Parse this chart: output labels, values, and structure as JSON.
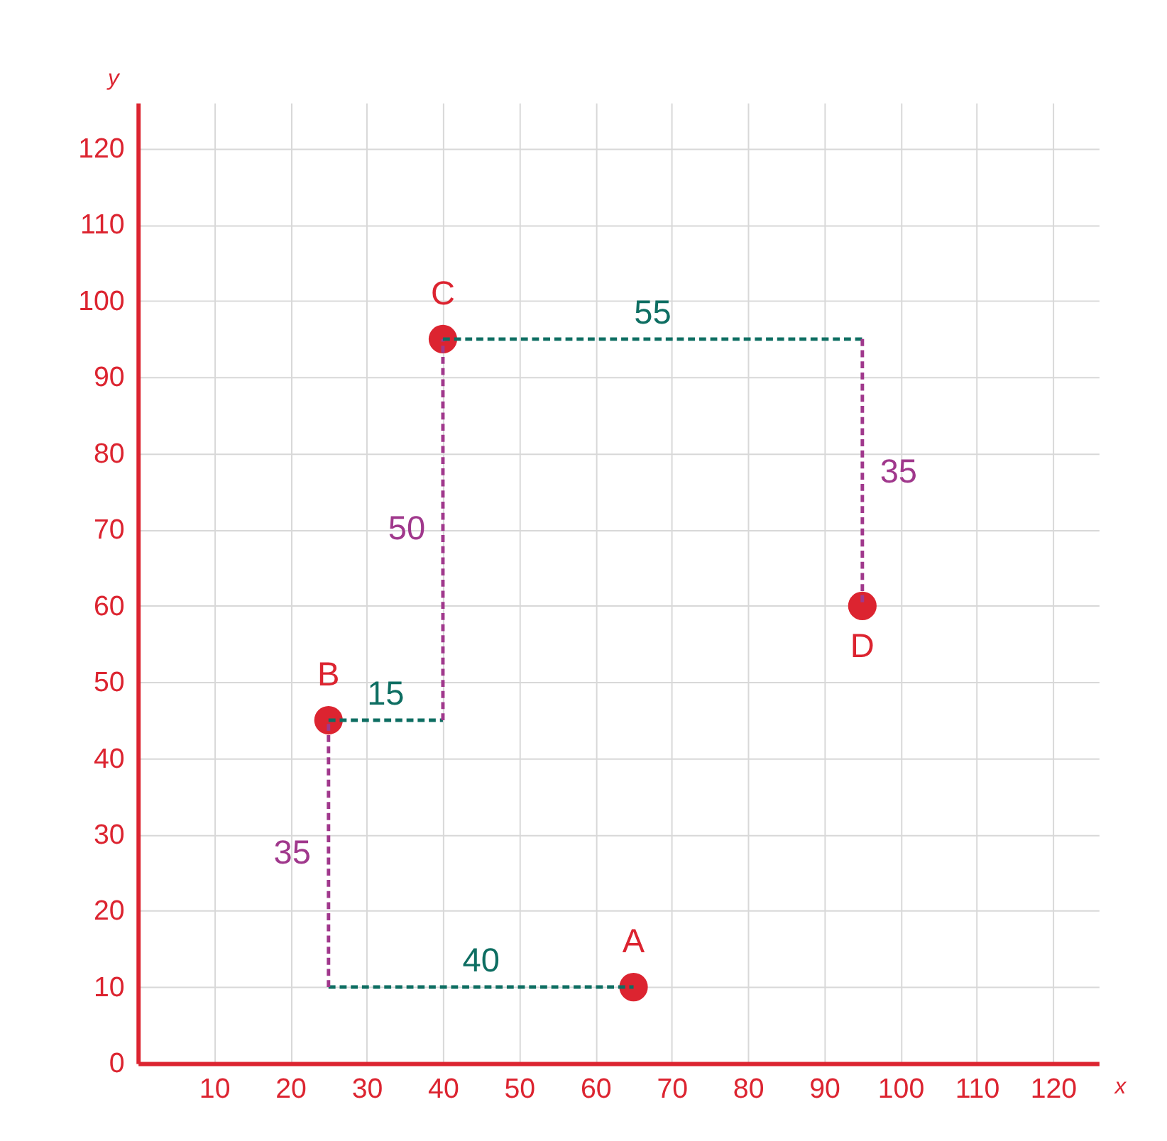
{
  "chart_data": {
    "type": "scatter",
    "xlabel": "x",
    "ylabel": "y",
    "xlim": [
      0,
      126
    ],
    "ylim": [
      0,
      126
    ],
    "xticks": [
      10,
      20,
      30,
      40,
      50,
      60,
      70,
      80,
      90,
      100,
      110,
      120
    ],
    "yticks": [
      0,
      10,
      20,
      30,
      40,
      50,
      60,
      70,
      80,
      90,
      100,
      110,
      120
    ],
    "grid": true,
    "marker": "circle",
    "series": [
      {
        "color": "#dc2430",
        "x": [
          65,
          25,
          40,
          95
        ],
        "values": [
          10,
          45,
          95,
          60
        ]
      },
      {
        "type": "line",
        "marker": "none",
        "color": "#0e6e62",
        "line_style": "dashed",
        "x": [
          25,
          65
        ],
        "values": [
          10,
          10
        ]
      },
      {
        "type": "line",
        "marker": "none",
        "color": "#a0388c",
        "line_style": "dashed",
        "x": [
          25,
          25
        ],
        "values": [
          10,
          45
        ]
      },
      {
        "type": "line",
        "marker": "none",
        "color": "#0e6e62",
        "line_style": "dashed",
        "x": [
          25,
          40
        ],
        "values": [
          45,
          45
        ]
      },
      {
        "type": "line",
        "marker": "none",
        "color": "#a0388c",
        "line_style": "dashed",
        "x": [
          40,
          40
        ],
        "values": [
          45,
          95
        ]
      },
      {
        "type": "line",
        "marker": "none",
        "color": "#0e6e62",
        "line_style": "dashed",
        "x": [
          40,
          95
        ],
        "values": [
          95,
          95
        ]
      },
      {
        "type": "line",
        "marker": "none",
        "color": "#a0388c",
        "line_style": "dashed",
        "x": [
          95,
          95
        ],
        "values": [
          95,
          60
        ]
      }
    ],
    "annotations": [
      {
        "text": "A",
        "x": 65,
        "y": 10
      },
      {
        "text": "B",
        "x": 25,
        "y": 45
      },
      {
        "text": "C",
        "x": 40,
        "y": 95
      },
      {
        "text": "D",
        "x": 95,
        "y": 60
      },
      {
        "text": "40",
        "x": 45,
        "y": 10
      },
      {
        "text": "35",
        "x": 25,
        "y": 27.5
      },
      {
        "text": "15",
        "x": 32.5,
        "y": 45
      },
      {
        "text": "50",
        "x": 40,
        "y": 70
      },
      {
        "text": "55",
        "x": 67.5,
        "y": 95
      },
      {
        "text": "35",
        "x": 95,
        "y": 77.5
      }
    ]
  }
}
